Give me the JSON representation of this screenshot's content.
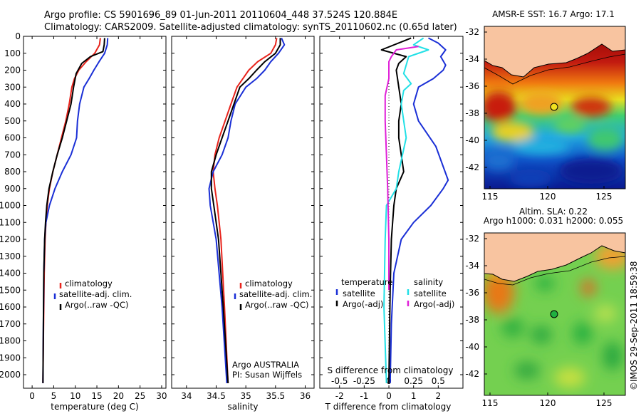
{
  "header": {
    "line1": "Argo profile: CS 5901696_89 01-Jun-2011 20110604_448 37.524S 120.884E",
    "line2": "Climatology: CARS2009. Satellite-adjusted climatology: synTS_20110602.nc (0.65d later)"
  },
  "colors": {
    "climatology": "#e8241c",
    "satellite": "#1a2fd6",
    "argo": "#000000",
    "cyan": "#22e0e6",
    "magenta": "#e020d8"
  },
  "chart_data": [
    {
      "id": "temperature",
      "type": "line",
      "xlabel": "temperature (deg C)",
      "ylabel": "",
      "xlim": [
        -2,
        31
      ],
      "ylim": [
        2080,
        0
      ],
      "xticks": [
        "0",
        "5",
        "10",
        "15",
        "20",
        "25",
        "30"
      ],
      "xtick_values": [
        0,
        5,
        10,
        15,
        20,
        25,
        30
      ],
      "yticks": [
        "0",
        "100",
        "200",
        "300",
        "400",
        "500",
        "600",
        "700",
        "800",
        "900",
        "1000",
        "1100",
        "1200",
        "1300",
        "1400",
        "1500",
        "1600",
        "1700",
        "1800",
        "1900",
        "2000"
      ],
      "legend": [
        "climatology",
        "satellite-adj. clim.",
        "Argo(..raw -QC)"
      ],
      "series": [
        {
          "name": "climatology",
          "color": "climatology",
          "x": [
            15.8,
            15.6,
            14.5,
            12.5,
            10.8,
            9.8,
            9.2,
            8.6,
            7.8,
            6.8,
            5.8,
            4.8,
            4.0,
            3.5,
            3.2,
            3.0,
            2.8,
            2.7,
            2.6,
            2.5
          ],
          "y": [
            10,
            50,
            100,
            150,
            200,
            250,
            300,
            400,
            500,
            600,
            700,
            800,
            900,
            1000,
            1100,
            1200,
            1400,
            1600,
            1800,
            2050
          ]
        },
        {
          "name": "satellite-adj. clim.",
          "color": "satellite",
          "x": [
            17.5,
            17.4,
            16.8,
            15.5,
            14.3,
            13.2,
            12.0,
            11.0,
            10.5,
            10.3,
            9.0,
            7.0,
            5.3,
            4.0,
            3.2,
            2.9,
            2.7,
            2.6,
            2.5
          ],
          "y": [
            10,
            50,
            100,
            150,
            200,
            250,
            300,
            400,
            500,
            600,
            700,
            800,
            900,
            1000,
            1100,
            1200,
            1400,
            1700,
            2050
          ]
        },
        {
          "name": "Argo(..raw -QC)",
          "color": "argo",
          "x": [
            16.8,
            16.7,
            16.4,
            13.5,
            11.5,
            10.2,
            9.6,
            9.0,
            8.0,
            7.0,
            5.8,
            4.8,
            3.9,
            3.4,
            3.1,
            2.9,
            2.7,
            2.6,
            2.5
          ],
          "y": [
            10,
            50,
            90,
            120,
            160,
            220,
            300,
            400,
            500,
            600,
            700,
            800,
            900,
            1000,
            1100,
            1200,
            1400,
            1700,
            2050
          ]
        }
      ]
    },
    {
      "id": "salinity",
      "type": "line",
      "xlabel": "salinity",
      "ylabel": "",
      "xlim": [
        33.75,
        36.15
      ],
      "ylim": [
        2080,
        0
      ],
      "xticks": [
        "34",
        "34.5",
        "35",
        "35.5",
        "36"
      ],
      "xtick_values": [
        34,
        34.5,
        35,
        35.5,
        36
      ],
      "yticks": [],
      "legend": [
        "climatology",
        "satellite-adj. clim.",
        "Argo(..raw -QC)"
      ],
      "series": [
        {
          "name": "climatology",
          "color": "climatology",
          "x": [
            35.52,
            35.5,
            35.42,
            35.2,
            35.05,
            34.95,
            34.85,
            34.75,
            34.65,
            34.55,
            34.48,
            34.45,
            34.48,
            34.52,
            34.58,
            34.64,
            34.7
          ],
          "y": [
            10,
            50,
            100,
            150,
            200,
            250,
            300,
            400,
            500,
            600,
            700,
            800,
            900,
            1000,
            1200,
            1600,
            2050
          ]
        },
        {
          "name": "satellite-adj. clim.",
          "color": "satellite",
          "x": [
            35.6,
            35.65,
            35.55,
            35.42,
            35.32,
            35.18,
            35.0,
            34.82,
            34.75,
            34.7,
            34.6,
            34.45,
            34.38,
            34.4,
            34.5,
            34.6,
            34.68
          ],
          "y": [
            10,
            50,
            100,
            150,
            200,
            250,
            300,
            400,
            500,
            600,
            700,
            800,
            900,
            1000,
            1200,
            1600,
            2050
          ]
        },
        {
          "name": "Argo(..raw -QC)",
          "color": "argo",
          "x": [
            35.58,
            35.58,
            35.5,
            35.32,
            35.18,
            35.05,
            34.9,
            34.8,
            34.7,
            34.6,
            34.5,
            34.42,
            34.42,
            34.46,
            34.54,
            34.62,
            34.7
          ],
          "y": [
            10,
            50,
            100,
            150,
            200,
            250,
            300,
            400,
            500,
            600,
            700,
            800,
            900,
            1000,
            1200,
            1600,
            2050
          ]
        }
      ]
    },
    {
      "id": "difference",
      "type": "line",
      "xlabel": "T difference from climatology",
      "xlabel_top": "S difference from climatology",
      "xlim": [
        -2.8,
        3.0
      ],
      "ylim": [
        2080,
        0
      ],
      "xticks": [
        "-2",
        "-1",
        "0",
        "1",
        "2"
      ],
      "xtick_values": [
        -2,
        -1,
        0,
        1,
        2
      ],
      "sticks": [
        "-0.5",
        "-0.25",
        "0",
        "0.25",
        "0.5"
      ],
      "stick_values": [
        -0.5,
        -0.25,
        0,
        0.25,
        0.5
      ],
      "s_scale": 4,
      "legend_titles": [
        "temperature",
        "salinity"
      ],
      "legend_left": [
        "satellite",
        "Argo(-adj)"
      ],
      "legend_right": [
        "satellite",
        "Argo(-adj)"
      ],
      "annotation": [
        "Argo AUSTRALIA",
        "PI: Susan Wijffels"
      ],
      "series": [
        {
          "name": "T satellite",
          "color": "satellite",
          "x": [
            1.6,
            2.0,
            2.3,
            2.1,
            2.3,
            2.2,
            1.8,
            1.2,
            1.0,
            1.2,
            1.9,
            2.4,
            2.2,
            1.7,
            1.0,
            0.5,
            0.2,
            0.1,
            0.05
          ],
          "y": [
            10,
            40,
            80,
            120,
            170,
            200,
            250,
            300,
            400,
            500,
            650,
            850,
            900,
            1000,
            1100,
            1200,
            1400,
            1700,
            2050
          ]
        },
        {
          "name": "T Argo",
          "color": "argo",
          "x": [
            0.9,
            -0.3,
            0.7,
            0.4,
            0.3,
            0.4,
            0.5,
            0.4,
            0.4,
            0.5,
            0.6,
            0.3,
            0.2,
            0.1,
            0.05,
            0.0
          ],
          "y": [
            10,
            80,
            120,
            160,
            200,
            300,
            400,
            500,
            600,
            700,
            800,
            900,
            1000,
            1200,
            1500,
            2050
          ]
        },
        {
          "name": "S satellite",
          "color": "cyan",
          "x": [
            1.4,
            1.0,
            1.6,
            0.8,
            0.7,
            0.6,
            0.9,
            0.6,
            0.5,
            0.7,
            0.4,
            0.3,
            -0.1,
            -0.15,
            -0.2,
            -0.1
          ],
          "y": [
            10,
            50,
            80,
            120,
            170,
            220,
            280,
            320,
            400,
            600,
            800,
            900,
            1000,
            1200,
            1600,
            2050
          ]
        },
        {
          "name": "S Argo",
          "color": "magenta",
          "x": [
            1.2,
            0.3,
            0.1,
            0.0,
            0.0,
            -0.15,
            -0.15,
            -0.1,
            -0.05,
            0.0,
            0.0
          ],
          "y": [
            60,
            80,
            120,
            150,
            250,
            350,
            500,
            700,
            900,
            1200,
            1500
          ]
        }
      ]
    }
  ],
  "maps": {
    "top_title": "AMSR-E SST: 16.7  Argo: 17.1",
    "bottom_title1": "Altim. SLA: 0.22",
    "bottom_title2": "Argo h1000: 0.031 h2000: 0.055",
    "lat_ticks": [
      "-32",
      "-34",
      "-36",
      "-38",
      "-40",
      "-42"
    ],
    "lon_ticks": [
      "115",
      "120",
      "125"
    ],
    "credit": "©IMOS 29-Sep-2011 18:59:38"
  }
}
